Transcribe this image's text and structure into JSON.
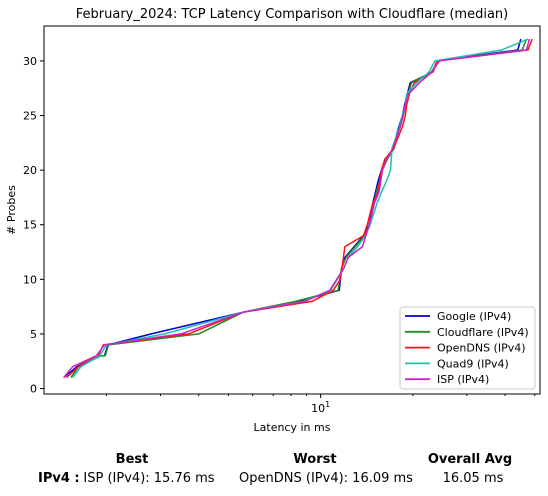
{
  "chart_data": {
    "type": "line",
    "title": "February_2024: TCP Latency Comparison with Cloudflare (median)",
    "xlabel": "Latency in ms",
    "ylabel": "# Probes",
    "xscale": "log",
    "xlim": [
      1.25,
      52
    ],
    "ylim": [
      -0.5,
      33.2
    ],
    "xticks": [
      {
        "value": 10,
        "base": "10",
        "exp": "1"
      }
    ],
    "yticks": [
      0,
      5,
      10,
      15,
      20,
      25,
      30
    ],
    "grid": false,
    "legend_position": "lower right",
    "series": [
      {
        "name": "Google (IPv4)",
        "color": "#0000cc",
        "points": [
          [
            1.45,
            1
          ],
          [
            1.6,
            2
          ],
          [
            1.9,
            3
          ],
          [
            1.97,
            3
          ],
          [
            2.02,
            4
          ],
          [
            2.8,
            5
          ],
          [
            5.6,
            7
          ],
          [
            8.5,
            8
          ],
          [
            11.5,
            9
          ],
          [
            11.7,
            11
          ],
          [
            12.0,
            12
          ],
          [
            13.8,
            14
          ],
          [
            14.4,
            15
          ],
          [
            14.8,
            17
          ],
          [
            15.1,
            18
          ],
          [
            15.4,
            19
          ],
          [
            15.8,
            20
          ],
          [
            16.4,
            21
          ],
          [
            17.3,
            22
          ],
          [
            17.6,
            23
          ],
          [
            18.0,
            24
          ],
          [
            18.5,
            25
          ],
          [
            18.8,
            26
          ],
          [
            19.2,
            27
          ],
          [
            19.6,
            28
          ],
          [
            23.2,
            29
          ],
          [
            24.0,
            30
          ],
          [
            44.0,
            31
          ],
          [
            45.0,
            32
          ]
        ]
      },
      {
        "name": "Cloudflare (IPv4)",
        "color": "#228b22",
        "points": [
          [
            1.53,
            1
          ],
          [
            1.62,
            2
          ],
          [
            1.92,
            3
          ],
          [
            1.98,
            3
          ],
          [
            2.03,
            4
          ],
          [
            4.0,
            5
          ],
          [
            5.6,
            7
          ],
          [
            8.3,
            8
          ],
          [
            11.4,
            9
          ],
          [
            11.7,
            11
          ],
          [
            12.1,
            12
          ],
          [
            13.9,
            14
          ],
          [
            14.5,
            15
          ],
          [
            14.9,
            17
          ],
          [
            15.2,
            18
          ],
          [
            15.6,
            19
          ],
          [
            15.9,
            20
          ],
          [
            16.5,
            21
          ],
          [
            17.4,
            22
          ],
          [
            17.7,
            23
          ],
          [
            18.2,
            24
          ],
          [
            18.6,
            25
          ],
          [
            18.9,
            26
          ],
          [
            19.3,
            27
          ],
          [
            19.8,
            28
          ],
          [
            23.0,
            29
          ],
          [
            24.2,
            30
          ],
          [
            45.5,
            31
          ],
          [
            47.0,
            32
          ]
        ]
      },
      {
        "name": "OpenDNS (IPv4)",
        "color": "#ff1111",
        "points": [
          [
            1.48,
            1
          ],
          [
            1.62,
            2
          ],
          [
            1.88,
            3
          ],
          [
            1.95,
            4
          ],
          [
            3.7,
            5
          ],
          [
            5.6,
            7
          ],
          [
            9.4,
            8
          ],
          [
            11.0,
            9
          ],
          [
            11.6,
            10
          ],
          [
            12.0,
            13
          ],
          [
            13.8,
            14
          ],
          [
            14.2,
            15
          ],
          [
            14.8,
            17
          ],
          [
            15.4,
            18
          ],
          [
            15.8,
            20
          ],
          [
            16.2,
            21
          ],
          [
            17.3,
            22
          ],
          [
            17.9,
            23
          ],
          [
            18.5,
            24
          ],
          [
            18.9,
            25
          ],
          [
            19.1,
            26
          ],
          [
            19.5,
            27
          ],
          [
            20.2,
            28
          ],
          [
            23.3,
            29
          ],
          [
            24.0,
            30
          ],
          [
            47.5,
            31
          ],
          [
            49.0,
            32
          ]
        ]
      },
      {
        "name": "Quad9 (IPv4)",
        "color": "#20c0b0",
        "points": [
          [
            1.55,
            1
          ],
          [
            1.65,
            2
          ],
          [
            1.9,
            3
          ],
          [
            2.0,
            4
          ],
          [
            3.1,
            5
          ],
          [
            5.6,
            7
          ],
          [
            8.8,
            8
          ],
          [
            10.8,
            9
          ],
          [
            11.9,
            11
          ],
          [
            12.3,
            12
          ],
          [
            13.2,
            13
          ],
          [
            14.0,
            14
          ],
          [
            14.5,
            15
          ],
          [
            14.9,
            16
          ],
          [
            15.3,
            17
          ],
          [
            15.8,
            18
          ],
          [
            16.4,
            19
          ],
          [
            16.9,
            20
          ],
          [
            17.1,
            22
          ],
          [
            17.6,
            23
          ],
          [
            18.1,
            24
          ],
          [
            18.5,
            25
          ],
          [
            18.9,
            26
          ],
          [
            19.1,
            27
          ],
          [
            20.6,
            28
          ],
          [
            22.6,
            29
          ],
          [
            23.6,
            30
          ],
          [
            39.0,
            31
          ],
          [
            47.5,
            32
          ]
        ]
      },
      {
        "name": "ISP (IPv4)",
        "color": "#cc22cc",
        "points": [
          [
            1.45,
            1
          ],
          [
            1.55,
            2
          ],
          [
            1.85,
            3
          ],
          [
            1.97,
            4
          ],
          [
            3.5,
            5
          ],
          [
            5.6,
            7
          ],
          [
            8.9,
            8
          ],
          [
            10.7,
            9
          ],
          [
            11.9,
            11
          ],
          [
            12.3,
            12
          ],
          [
            13.7,
            13
          ],
          [
            14.4,
            15
          ],
          [
            15.0,
            17
          ],
          [
            15.5,
            18
          ],
          [
            15.9,
            20
          ],
          [
            16.4,
            21
          ],
          [
            17.2,
            22
          ],
          [
            17.7,
            23
          ],
          [
            18.2,
            24
          ],
          [
            18.6,
            25
          ],
          [
            18.9,
            26
          ],
          [
            19.4,
            27
          ],
          [
            21.0,
            28
          ],
          [
            23.1,
            29
          ],
          [
            24.4,
            30
          ],
          [
            47.0,
            31
          ],
          [
            48.0,
            32
          ]
        ]
      }
    ]
  },
  "summary": {
    "headers": {
      "best": "Best",
      "worst": "Worst",
      "avg": "Overall Avg"
    },
    "row_label": "IPv4 :",
    "best_value": "ISP (IPv4): 15.76 ms",
    "worst_value": "OpenDNS (IPv4): 16.09 ms",
    "avg_value": "16.05 ms"
  }
}
